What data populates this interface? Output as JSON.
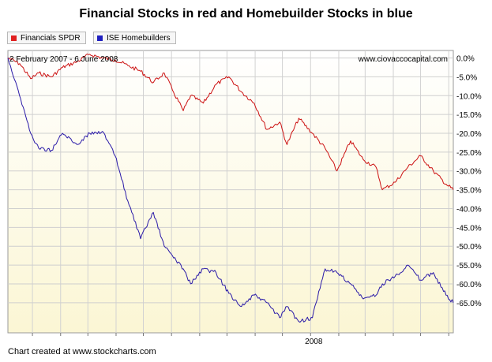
{
  "chart_data": {
    "type": "line",
    "title": "Financial Stocks in red and Homebuilder Stocks in blue",
    "date_range": "2 February 2007 - 6 June 2008",
    "watermark": "www.ciovaccocapital.com",
    "footer": "Chart created at www.stockcharts.com",
    "x_tick_label": "2008",
    "x_tick_date": "2008-01-01",
    "x_range": [
      "2007-02-02",
      "2008-06-06"
    ],
    "ylim": [
      -73,
      2
    ],
    "y_ticks": [
      "0.0%",
      "-5.0%",
      "-10.0%",
      "-15.0%",
      "-20.0%",
      "-25.0%",
      "-30.0%",
      "-35.0%",
      "-40.0%",
      "-45.0%",
      "-50.0%",
      "-55.0%",
      "-60.0%",
      "-65.0%"
    ],
    "y_tick_values": [
      0,
      -5,
      -10,
      -15,
      -20,
      -25,
      -30,
      -35,
      -40,
      -45,
      -50,
      -55,
      -60,
      -65
    ],
    "legend": [
      "Financials SPDR",
      "ISE Homebuilders"
    ],
    "legend_placement": "top-left",
    "grid": true,
    "colors": {
      "financials": "#cc1111",
      "homebuilders": "#2a1aa8",
      "legend_financials": "#e02020",
      "legend_homebuilders": "#2020c0",
      "plot_top": "#ffffff",
      "plot_bottom": "#fbf6d4"
    },
    "series": [
      {
        "name": "Financials SPDR",
        "x": [
          "2007-02-02",
          "2007-02-15",
          "2007-02-27",
          "2007-03-08",
          "2007-03-22",
          "2007-04-03",
          "2007-04-19",
          "2007-05-03",
          "2007-05-17",
          "2007-05-31",
          "2007-06-14",
          "2007-06-28",
          "2007-07-12",
          "2007-07-24",
          "2007-08-02",
          "2007-08-14",
          "2007-08-22",
          "2007-09-05",
          "2007-09-19",
          "2007-10-03",
          "2007-10-17",
          "2007-10-31",
          "2007-11-14",
          "2007-11-28",
          "2007-12-06",
          "2007-12-19",
          "2008-01-03",
          "2008-01-17",
          "2008-01-30",
          "2008-02-14",
          "2008-02-28",
          "2008-03-13",
          "2008-03-20",
          "2008-04-03",
          "2008-04-17",
          "2008-05-01",
          "2008-05-15",
          "2008-05-29",
          "2008-06-06"
        ],
        "values": [
          0.0,
          -1.5,
          -5.5,
          -4.0,
          -5.0,
          -2.5,
          -1.0,
          1.0,
          0.0,
          -0.5,
          -2.0,
          -3.5,
          -6.5,
          -4.0,
          -8.5,
          -14.0,
          -10.0,
          -12.0,
          -7.0,
          -5.0,
          -9.0,
          -12.0,
          -19.0,
          -17.0,
          -23.0,
          -16.0,
          -20.0,
          -24.0,
          -30.0,
          -22.0,
          -27.0,
          -29.0,
          -35.0,
          -33.0,
          -29.0,
          -26.0,
          -30.0,
          -33.5,
          -35.0
        ]
      },
      {
        "name": "ISE Homebuilders",
        "x": [
          "2007-02-02",
          "2007-02-12",
          "2007-02-27",
          "2007-03-08",
          "2007-03-22",
          "2007-04-03",
          "2007-04-19",
          "2007-05-03",
          "2007-05-17",
          "2007-05-31",
          "2007-06-14",
          "2007-06-28",
          "2007-07-12",
          "2007-07-24",
          "2007-08-02",
          "2007-08-14",
          "2007-08-22",
          "2007-09-05",
          "2007-09-19",
          "2007-10-03",
          "2007-10-17",
          "2007-10-31",
          "2007-11-14",
          "2007-11-28",
          "2007-12-06",
          "2007-12-19",
          "2008-01-03",
          "2008-01-17",
          "2008-01-30",
          "2008-02-14",
          "2008-02-28",
          "2008-03-13",
          "2008-03-20",
          "2008-04-03",
          "2008-04-17",
          "2008-05-01",
          "2008-05-15",
          "2008-05-29",
          "2008-06-06"
        ],
        "values": [
          0.0,
          -7.5,
          -20.0,
          -24.0,
          -24.5,
          -20.0,
          -23.0,
          -20.0,
          -19.5,
          -26.0,
          -38.0,
          -48.0,
          -41.0,
          -50.0,
          -52.5,
          -56.0,
          -60.0,
          -56.0,
          -57.0,
          -62.5,
          -66.0,
          -63.0,
          -65.0,
          -69.0,
          -66.0,
          -70.0,
          -69.0,
          -56.0,
          -57.0,
          -60.0,
          -64.0,
          -63.0,
          -60.0,
          -58.0,
          -55.0,
          -59.0,
          -57.0,
          -63.0,
          -65.0
        ]
      }
    ]
  }
}
